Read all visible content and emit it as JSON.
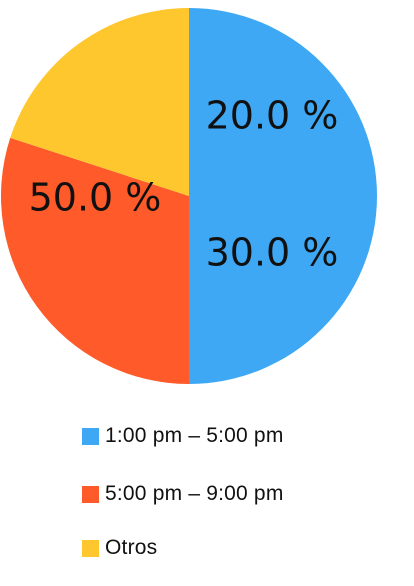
{
  "chart_data": {
    "type": "pie",
    "slices": [
      {
        "label": "1:00 pm –  5:00 pm",
        "value": 50.0,
        "value_label": "50.0 %",
        "color": "#3EA8F4"
      },
      {
        "label": "5:00 pm – 9:00 pm",
        "value": 30.0,
        "value_label": "30.0 %",
        "color": "#FF5A2A"
      },
      {
        "label": "Otros",
        "value": 20.0,
        "value_label": "20.0 %",
        "color": "#FFC72E"
      }
    ],
    "title": "",
    "legend_position": "bottom",
    "start_angle": "top",
    "direction": "clockwise"
  }
}
